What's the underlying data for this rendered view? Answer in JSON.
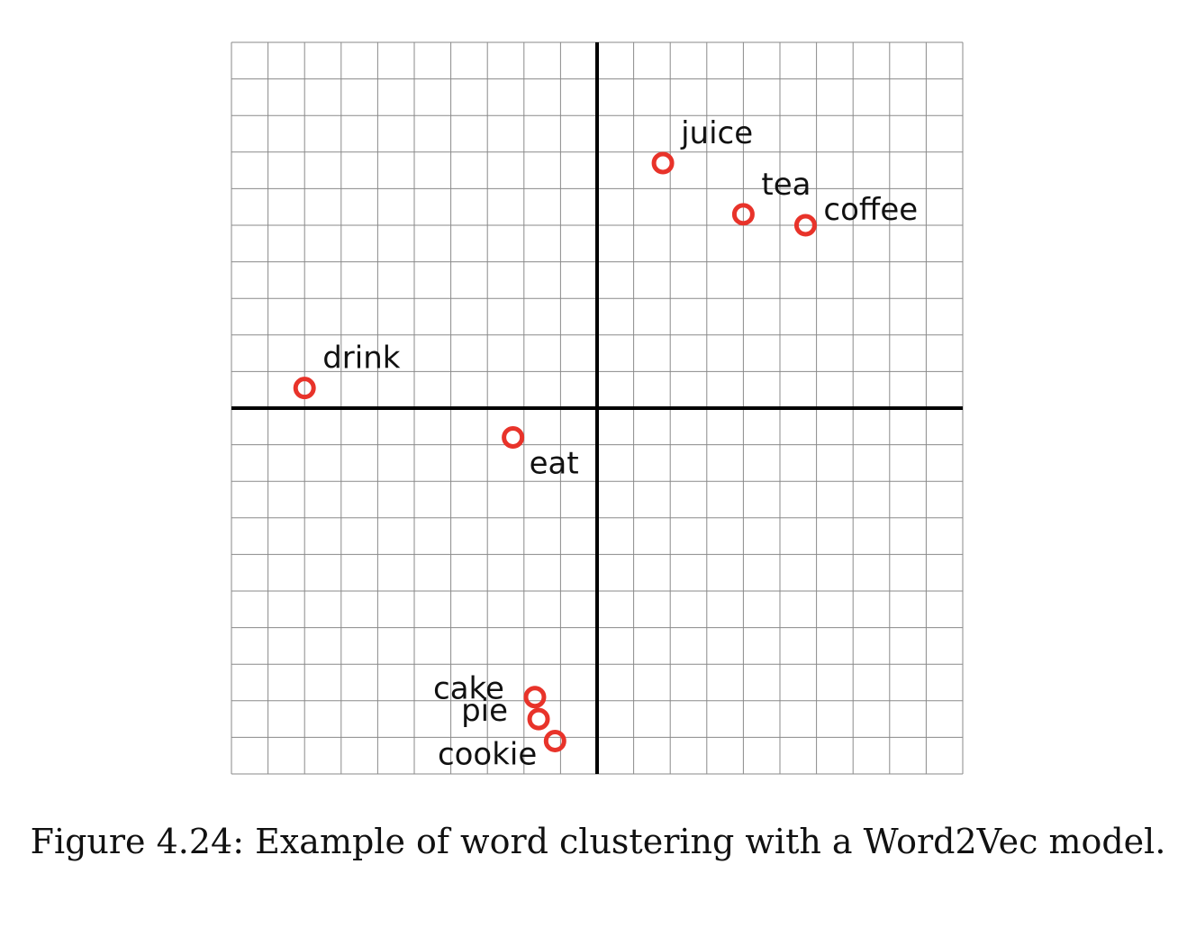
{
  "caption": "Figure 4.24: Example of word clustering with a Word2Vec model.",
  "colors": {
    "point": "#e8332a",
    "grid": "#8a8a8a",
    "axis": "#000000"
  },
  "chart_data": {
    "type": "scatter",
    "title": "",
    "xlabel": "",
    "ylabel": "",
    "xlim": [
      -10,
      10
    ],
    "ylim": [
      -10,
      10
    ],
    "grid": true,
    "grid_step": 1,
    "points": [
      {
        "label": "juice",
        "x": 1.8,
        "y": 6.7,
        "label_pos": "upper-right"
      },
      {
        "label": "tea",
        "x": 4.0,
        "y": 5.3,
        "label_pos": "upper-right"
      },
      {
        "label": "coffee",
        "x": 5.7,
        "y": 5.0,
        "label_pos": "right"
      },
      {
        "label": "drink",
        "x": -8.0,
        "y": 0.55,
        "label_pos": "upper-right"
      },
      {
        "label": "eat",
        "x": -2.3,
        "y": -0.8,
        "label_pos": "lower-right"
      },
      {
        "label": "cake",
        "x": -1.7,
        "y": -7.9,
        "label_pos": "left"
      },
      {
        "label": "pie",
        "x": -1.6,
        "y": -8.5,
        "label_pos": "left"
      },
      {
        "label": "cookie",
        "x": -1.15,
        "y": -9.1,
        "label_pos": "lower-left"
      }
    ]
  }
}
